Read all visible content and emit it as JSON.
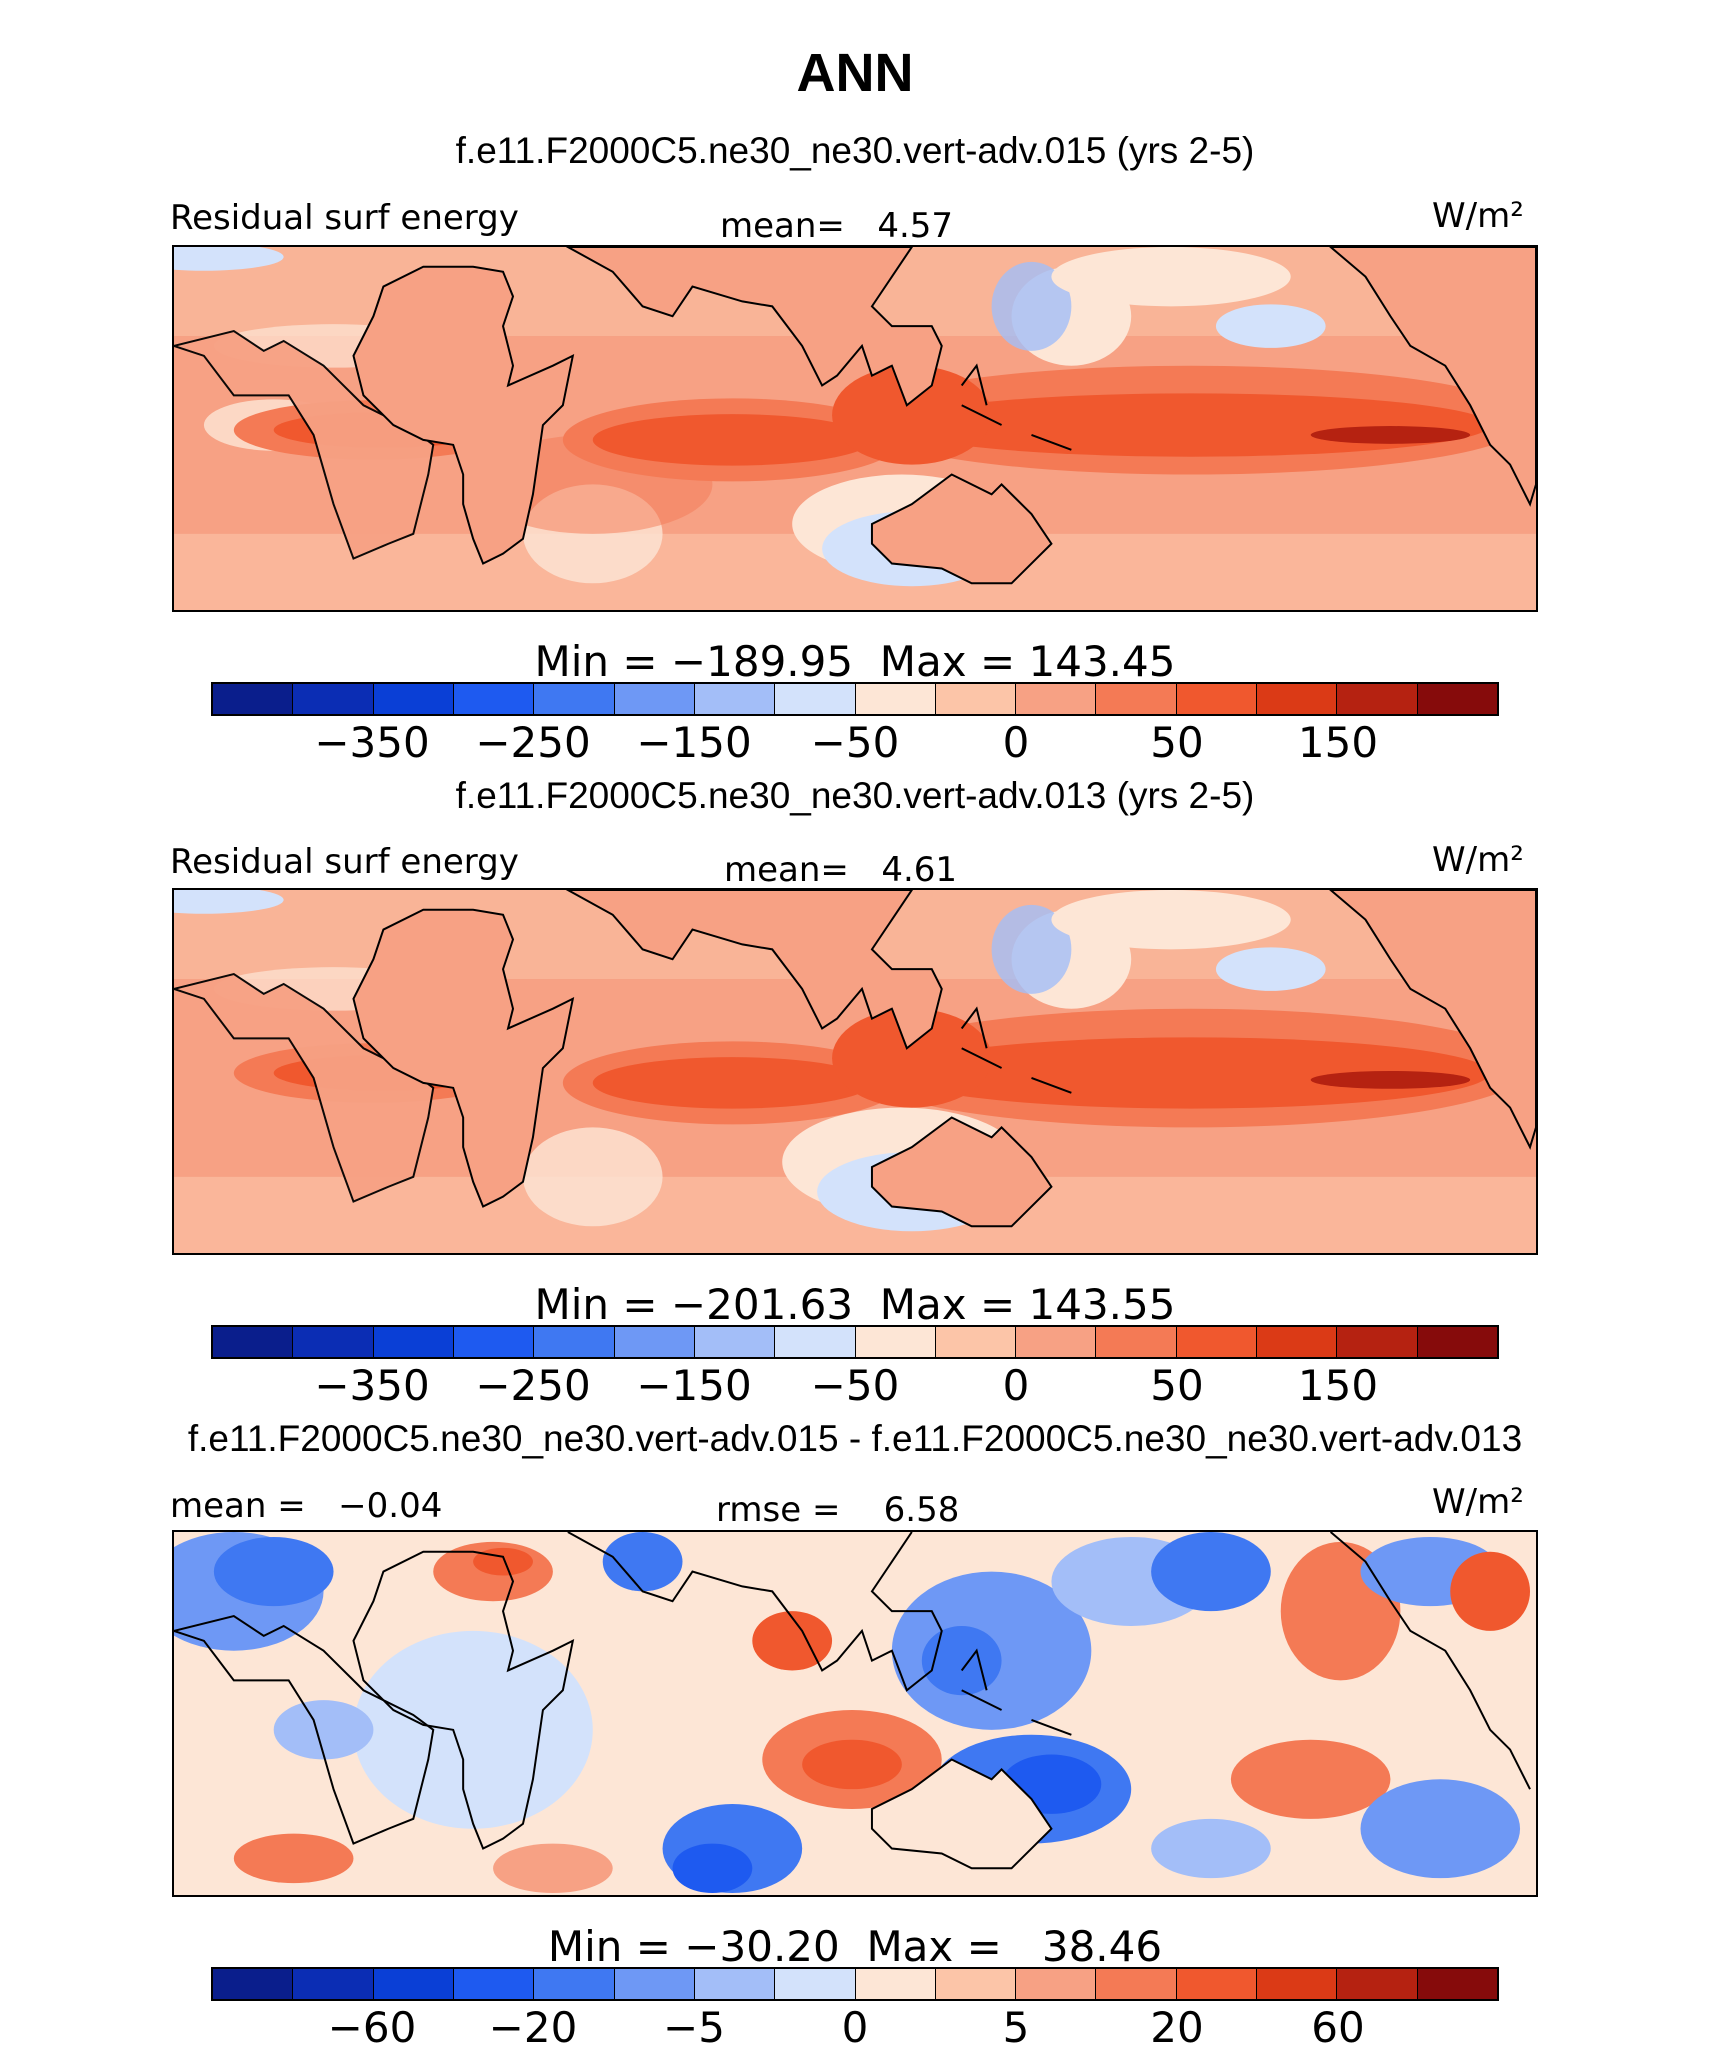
{
  "title": "ANN",
  "colors": {
    "seq": [
      "#0a1e8c",
      "#0b2db4",
      "#0a3fd6",
      "#1e5af0",
      "#3f78f2",
      "#6e98f5",
      "#a3bef8",
      "#d3e2fb",
      "#fde6d6",
      "#fcc5a8",
      "#f7a184",
      "#f47a55",
      "#f0582e",
      "#db3a16",
      "#b52211",
      "#860b0b"
    ]
  },
  "panels": [
    {
      "title": "f.e11.F2000C5.ne30_ne30.vert-adv.015 (yrs 2-5)",
      "left_label": "Residual surf energy",
      "center_label": "mean=   4.57",
      "units": "W/m²",
      "minmax": "Min = −189.95  Max = 143.45",
      "ticks": [
        "−350",
        "−250",
        "−150",
        "−50",
        "0",
        "50",
        "150"
      ]
    },
    {
      "title": "f.e11.F2000C5.ne30_ne30.vert-adv.013 (yrs 2-5)",
      "left_label": "Residual surf energy",
      "center_label": "mean=   4.61",
      "units": "W/m²",
      "minmax": "Min = −201.63  Max = 143.55",
      "ticks": [
        "−350",
        "−250",
        "−150",
        "−50",
        "0",
        "50",
        "150"
      ]
    },
    {
      "title": "f.e11.F2000C5.ne30_ne30.vert-adv.015 - f.e11.F2000C5.ne30_ne30.vert-adv.013",
      "left_label": "mean =   −0.04",
      "center_label": "rmse =    6.58",
      "units": "W/m²",
      "minmax": "Min = −30.20  Max =   38.46",
      "ticks": [
        "−60",
        "−20",
        "−5",
        "0",
        "5",
        "20",
        "60"
      ]
    }
  ],
  "chart_data": [
    {
      "type": "heatmap",
      "title": "f.e11.F2000C5.ne30_ne30.vert-adv.015 (yrs 2-5)",
      "variable": "Residual surf energy",
      "units": "W/m²",
      "mean": 4.57,
      "min": -189.95,
      "max": 143.45,
      "colorbar_levels": [
        -350,
        -300,
        -250,
        -200,
        -150,
        -100,
        -50,
        -25,
        0,
        25,
        50,
        100,
        150,
        200,
        250
      ],
      "colorbar_tick_labels": [
        "−350",
        "−250",
        "−150",
        "−50",
        "0",
        "50",
        "150"
      ]
    },
    {
      "type": "heatmap",
      "title": "f.e11.F2000C5.ne30_ne30.vert-adv.013 (yrs 2-5)",
      "variable": "Residual surf energy",
      "units": "W/m²",
      "mean": 4.61,
      "min": -201.63,
      "max": 143.55,
      "colorbar_levels": [
        -350,
        -300,
        -250,
        -200,
        -150,
        -100,
        -50,
        -25,
        0,
        25,
        50,
        100,
        150,
        200,
        250
      ],
      "colorbar_tick_labels": [
        "−350",
        "−250",
        "−150",
        "−50",
        "0",
        "50",
        "150"
      ]
    },
    {
      "type": "heatmap",
      "title": "f.e11.F2000C5.ne30_ne30.vert-adv.015 - f.e11.F2000C5.ne30_ne30.vert-adv.013",
      "units": "W/m²",
      "mean": -0.04,
      "rmse": 6.58,
      "min": -30.2,
      "max": 38.46,
      "colorbar_levels": [
        -60,
        -40,
        -20,
        -10,
        -5,
        -2,
        0,
        2,
        5,
        10,
        20,
        40,
        60
      ],
      "colorbar_tick_labels": [
        "−60",
        "−20",
        "−5",
        "0",
        "5",
        "20",
        "60"
      ]
    }
  ]
}
